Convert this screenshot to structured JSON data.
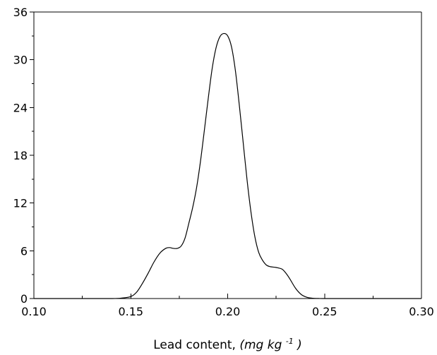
{
  "chart_data": {
    "type": "line",
    "title": "",
    "xlabel_main": "Lead content, ",
    "xlabel_unit_prefix": "(mg kg",
    "xlabel_unit_sup": "-1",
    "xlabel_unit_suffix": ")",
    "ylabel": "",
    "xlim": [
      0.1,
      0.3
    ],
    "ylim": [
      0,
      36
    ],
    "x_major_ticks": [
      0.1,
      0.15,
      0.2,
      0.25,
      0.3
    ],
    "x_tick_labels": [
      "0.10",
      "0.15",
      "0.20",
      "0.25",
      "0.30"
    ],
    "x_minor_ticks": [
      0.125,
      0.175,
      0.225,
      0.275
    ],
    "y_major_ticks": [
      0,
      6,
      12,
      18,
      24,
      30,
      36
    ],
    "y_tick_labels": [
      "0",
      "6",
      "12",
      "18",
      "24",
      "30",
      "36"
    ],
    "y_minor_ticks": [
      3,
      9,
      15,
      21,
      27,
      33
    ],
    "grid": false,
    "series": [
      {
        "x": [
          0.1,
          0.11,
          0.12,
          0.13,
          0.14,
          0.145,
          0.15,
          0.153,
          0.156,
          0.159,
          0.162,
          0.165,
          0.168,
          0.17,
          0.172,
          0.174,
          0.176,
          0.178,
          0.18,
          0.182,
          0.184,
          0.186,
          0.188,
          0.19,
          0.192,
          0.194,
          0.196,
          0.198,
          0.2,
          0.202,
          0.204,
          0.206,
          0.208,
          0.21,
          0.212,
          0.214,
          0.216,
          0.218,
          0.22,
          0.222,
          0.225,
          0.228,
          0.23,
          0.232,
          0.235,
          0.238,
          0.241,
          0.244,
          0.247,
          0.25,
          0.26,
          0.27,
          0.28,
          0.29,
          0.3
        ],
        "y": [
          0,
          0,
          0,
          0,
          0,
          0.05,
          0.25,
          0.8,
          1.9,
          3.2,
          4.6,
          5.7,
          6.3,
          6.4,
          6.3,
          6.3,
          6.6,
          7.6,
          9.5,
          11.5,
          14.0,
          17.3,
          21.2,
          25.2,
          28.9,
          31.5,
          32.9,
          33.3,
          33.0,
          31.6,
          28.6,
          24.3,
          19.6,
          14.9,
          10.9,
          7.8,
          5.8,
          4.8,
          4.2,
          4.0,
          3.9,
          3.7,
          3.2,
          2.5,
          1.3,
          0.5,
          0.15,
          0.04,
          0.01,
          0,
          0,
          0,
          0,
          0,
          0
        ]
      }
    ]
  }
}
